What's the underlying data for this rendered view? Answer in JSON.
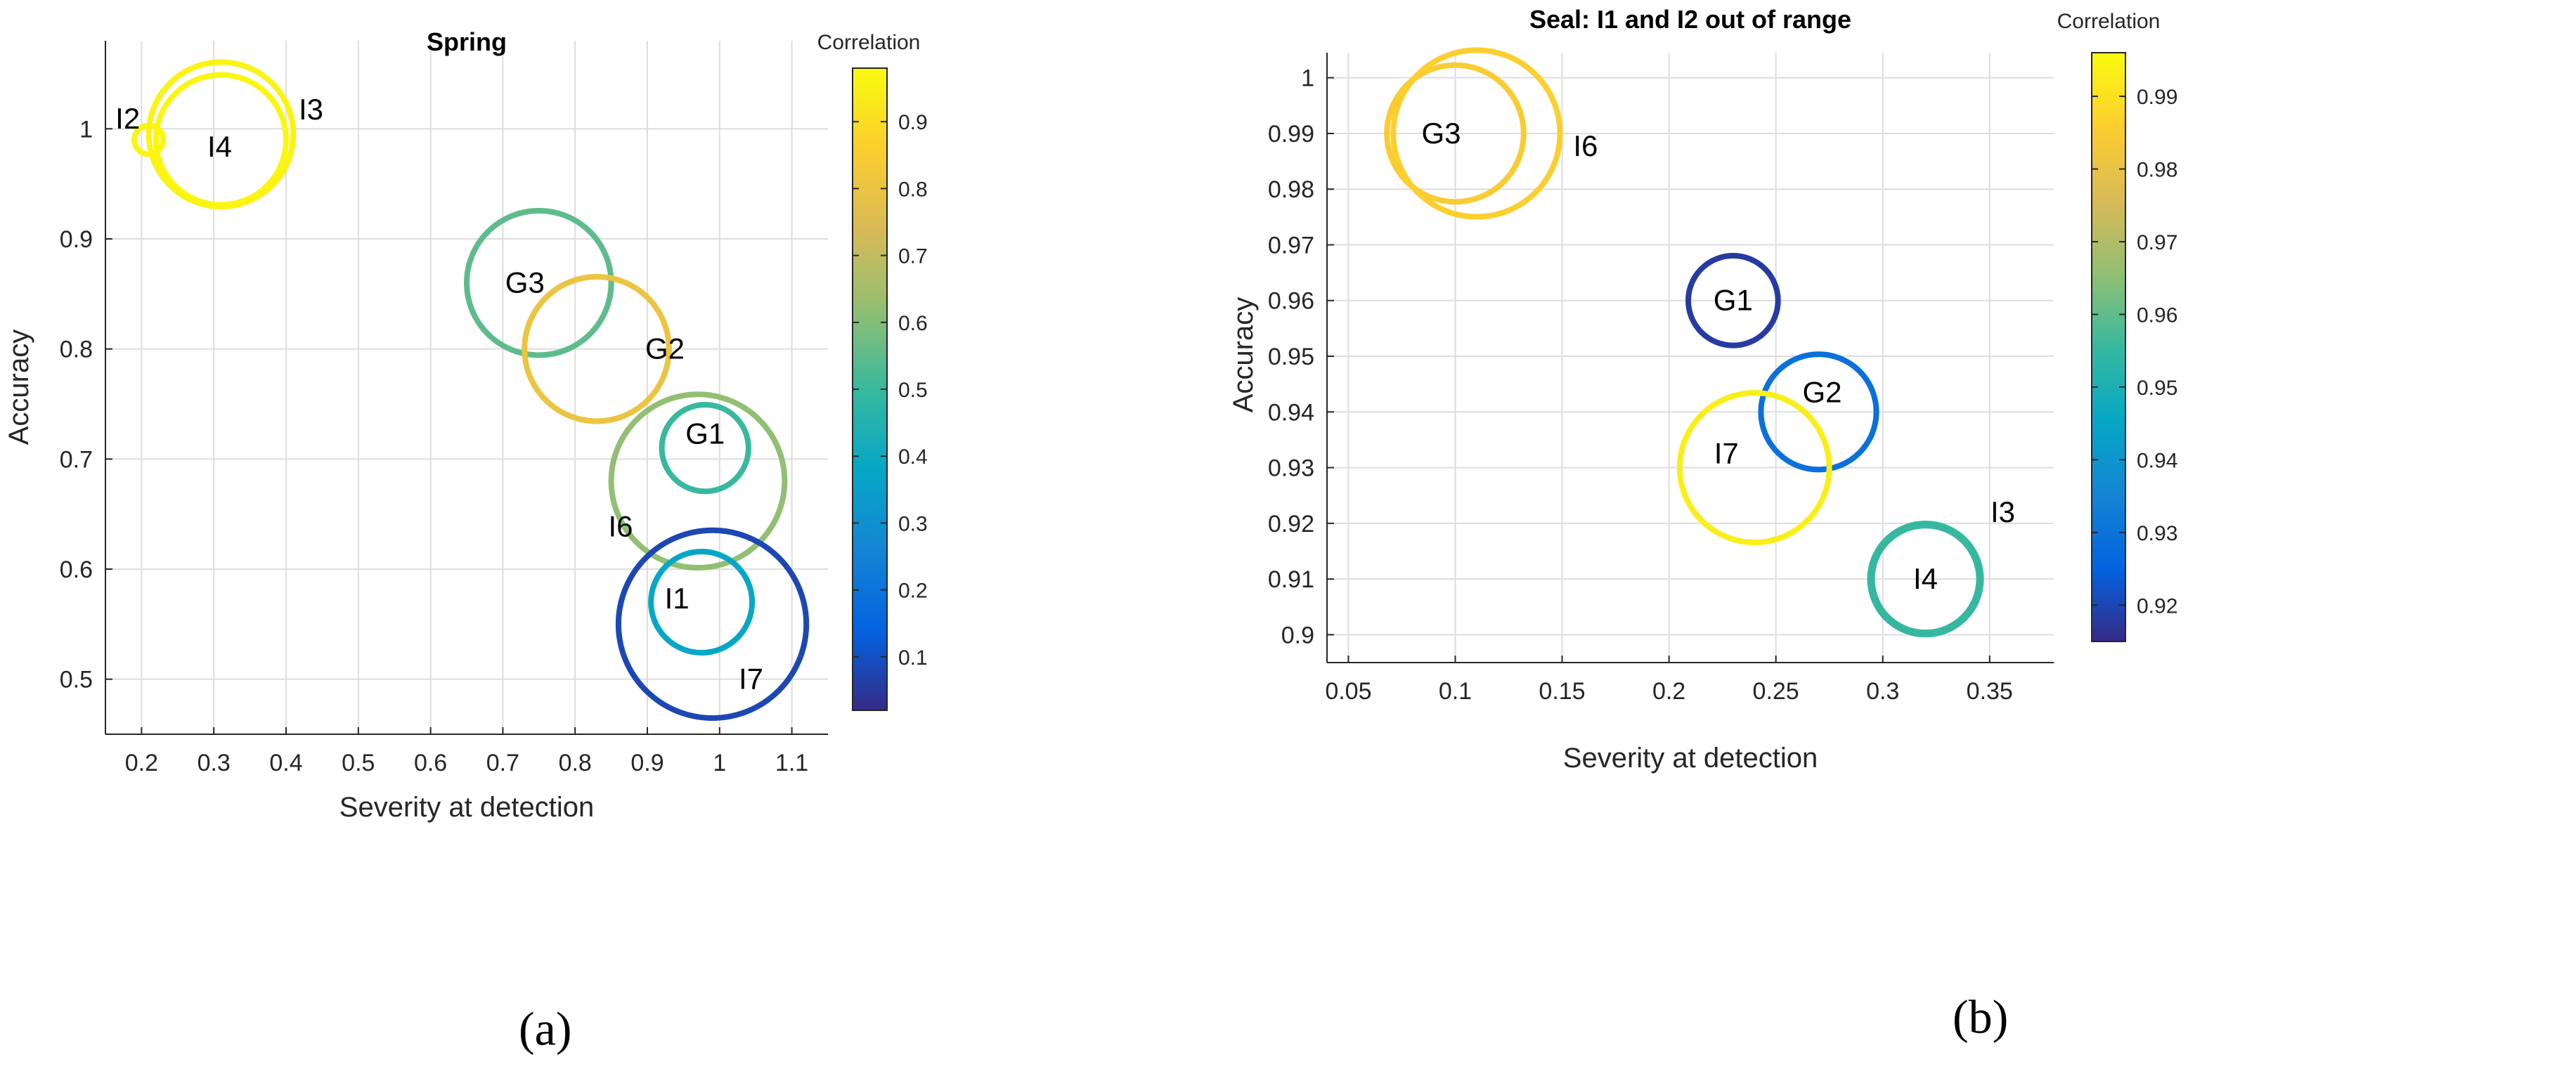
{
  "chart_data": [
    {
      "type": "scatter",
      "title": "Spring",
      "xlabel": "Severity at detection",
      "ylabel": "Accuracy",
      "colorbar_label": "Correlation",
      "xlim": [
        0.15,
        1.15
      ],
      "ylim": [
        0.45,
        1.08
      ],
      "xticks": [
        0.2,
        0.3,
        0.4,
        0.5,
        0.6,
        0.7,
        0.8,
        0.9,
        1,
        1.1
      ],
      "xtick_labels": [
        "0.2",
        "0.3",
        "0.4",
        "0.5",
        "0.6",
        "0.7",
        "0.8",
        "0.9",
        "1",
        "1.1"
      ],
      "yticks": [
        0.5,
        0.6,
        0.7,
        0.8,
        0.9,
        1
      ],
      "ytick_labels": [
        "0.5",
        "0.6",
        "0.7",
        "0.8",
        "0.9",
        "1"
      ],
      "clim": [
        0.02,
        0.98
      ],
      "cticks": [
        0.1,
        0.2,
        0.3,
        0.4,
        0.5,
        0.6,
        0.7,
        0.8,
        0.9
      ],
      "ctick_labels": [
        "0.1",
        "0.2",
        "0.3",
        "0.4",
        "0.5",
        "0.6",
        "0.7",
        "0.8",
        "0.9"
      ],
      "grid": true,
      "points": [
        {
          "label": "I2",
          "x": 0.21,
          "y": 0.99,
          "correlation": 0.97,
          "radius": 0.02
        },
        {
          "label": "I4",
          "x": 0.31,
          "y": 0.99,
          "correlation": 0.97,
          "radius": 0.09
        },
        {
          "label": "I3",
          "x": 0.31,
          "y": 0.995,
          "correlation": 0.96,
          "radius": 0.1
        },
        {
          "label": "G3",
          "x": 0.75,
          "y": 0.86,
          "correlation": 0.55,
          "radius": 0.1
        },
        {
          "label": "G2",
          "x": 0.83,
          "y": 0.8,
          "correlation": 0.8,
          "radius": 0.1
        },
        {
          "label": "I6",
          "x": 0.97,
          "y": 0.68,
          "correlation": 0.62,
          "radius": 0.12
        },
        {
          "label": "G1",
          "x": 0.98,
          "y": 0.71,
          "correlation": 0.5,
          "radius": 0.06
        },
        {
          "label": "I7",
          "x": 0.99,
          "y": 0.55,
          "correlation": 0.08,
          "radius": 0.13
        },
        {
          "label": "I1",
          "x": 0.975,
          "y": 0.57,
          "correlation": 0.38,
          "radius": 0.07
        }
      ]
    },
    {
      "type": "scatter",
      "title": "Seal: I1 and I2 out of range",
      "xlabel": "Severity at detection",
      "ylabel": "Accuracy",
      "colorbar_label": "Correlation",
      "xlim": [
        0.04,
        0.38
      ],
      "ylim": [
        0.895,
        1.0045
      ],
      "xticks": [
        0.05,
        0.1,
        0.15,
        0.2,
        0.25,
        0.3,
        0.35
      ],
      "xtick_labels": [
        "0.05",
        "0.1",
        "0.15",
        "0.2",
        "0.25",
        "0.3",
        "0.35"
      ],
      "yticks": [
        0.9,
        0.91,
        0.92,
        0.93,
        0.94,
        0.95,
        0.96,
        0.97,
        0.98,
        0.99,
        1
      ],
      "ytick_labels": [
        "0.9",
        "0.91",
        "0.92",
        "0.93",
        "0.94",
        "0.95",
        "0.96",
        "0.97",
        "0.98",
        "0.99",
        "1"
      ],
      "clim": [
        0.915,
        0.996
      ],
      "cticks": [
        0.92,
        0.93,
        0.94,
        0.95,
        0.96,
        0.97,
        0.98,
        0.99
      ],
      "ctick_labels": [
        "0.92",
        "0.93",
        "0.94",
        "0.95",
        "0.96",
        "0.97",
        "0.98",
        "0.99"
      ],
      "grid": true,
      "points": [
        {
          "label": "G3",
          "x": 0.1,
          "y": 0.99,
          "correlation": 0.985,
          "radius": 0.032
        },
        {
          "label": "I6",
          "x": 0.11,
          "y": 0.99,
          "correlation": 0.986,
          "radius": 0.039
        },
        {
          "label": "G1",
          "x": 0.23,
          "y": 0.96,
          "correlation": 0.918,
          "radius": 0.021
        },
        {
          "label": "G2",
          "x": 0.27,
          "y": 0.94,
          "correlation": 0.929,
          "radius": 0.027
        },
        {
          "label": "I7",
          "x": 0.24,
          "y": 0.93,
          "correlation": 0.993,
          "radius": 0.035
        },
        {
          "label": "I4",
          "x": 0.32,
          "y": 0.91,
          "correlation": 0.955,
          "radius": 0.025
        },
        {
          "label": "I3",
          "x": 0.32,
          "y": 0.91,
          "correlation": 0.955,
          "radius": 0.026
        }
      ]
    }
  ],
  "captions": [
    "(a)",
    "(b)"
  ],
  "colors": {
    "parula": [
      "#352a87",
      "#0363e1",
      "#1485d4",
      "#06a7c6",
      "#38b99e",
      "#92bf73",
      "#d9ba56",
      "#fcce2e",
      "#f9fb0e"
    ],
    "axis": "#262626",
    "grid": "#dddddd"
  }
}
